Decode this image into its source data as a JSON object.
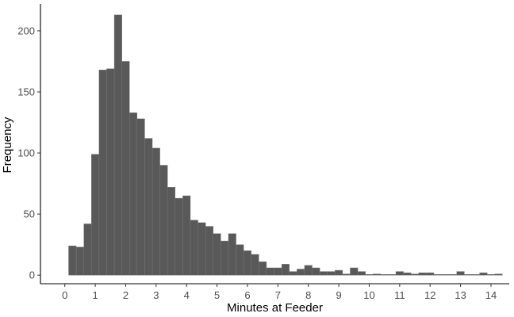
{
  "chart_data": {
    "type": "bar",
    "subtype": "histogram",
    "xlabel": "Minutes at Feeder",
    "ylabel": "Frequency",
    "bin_width": 0.25,
    "first_bin_start": 0.125,
    "xlim": [
      -0.8,
      14.6
    ],
    "ylim": [
      -7,
      222
    ],
    "xticks": [
      0,
      1,
      2,
      3,
      4,
      5,
      6,
      7,
      8,
      9,
      10,
      11,
      12,
      13,
      14
    ],
    "yticks": [
      0,
      50,
      100,
      150,
      200
    ],
    "x_tick_labels": [
      "0",
      "1",
      "2",
      "3",
      "4",
      "5",
      "6",
      "7",
      "8",
      "9",
      "10",
      "11",
      "12",
      "13",
      "14"
    ],
    "y_tick_labels": [
      "0",
      "50",
      "100",
      "150",
      "200"
    ],
    "values": [
      24,
      23,
      42,
      99,
      168,
      169,
      213,
      175,
      133,
      128,
      112,
      104,
      90,
      72,
      63,
      65,
      45,
      43,
      40,
      34,
      28,
      34,
      25,
      20,
      17,
      11,
      6,
      6,
      9,
      3,
      5,
      8,
      6,
      3,
      3,
      4,
      1,
      6,
      3,
      0,
      1,
      0,
      0,
      3,
      2,
      1,
      2,
      2,
      0,
      0,
      0,
      3,
      0,
      0,
      2,
      0,
      1
    ],
    "bar_color": "#595959",
    "bar_edge_color": "#7a7a7a",
    "grid": false
  }
}
